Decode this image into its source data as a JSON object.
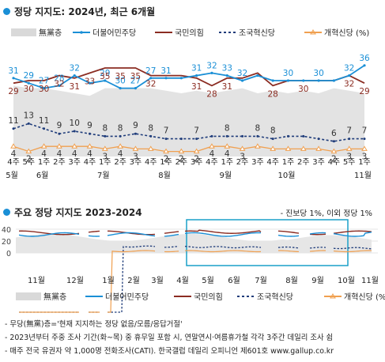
{
  "section1": {
    "title": "정당 지지도: 2024년, 최근 6개월"
  },
  "section2": {
    "title": "주요 정당 지지도 2023-2024"
  },
  "legend": [
    {
      "key": "none",
      "label": "無黨층",
      "color": "#d9d9d9"
    },
    {
      "key": "dem",
      "label": "더불어민주당",
      "color": "#1a8fd6"
    },
    {
      "key": "ppp",
      "label": "국민의힘",
      "color": "#8b2c22"
    },
    {
      "key": "rebuild",
      "label": "조국혁신당",
      "color": "#1f3c7a"
    },
    {
      "key": "reform",
      "label": "개혁신당 (%)",
      "color": "#f0a050"
    }
  ],
  "note": "- 진보당 1%, 이외 정당 1%",
  "footnotes": [
    "- 무당(無黨)층='현재 지지하는 정당 없음/모름/응답거절'",
    "- 2023년부터 주중 조사 기간(화~목) 중 휴무일 포함 시, 연말연시·여름휴가철 각각 3주간 데일리 조사 쉼",
    "- 매주 전국 유권자 약 1,000명 전화조사(CATI). 한국갤럽 데일리 오피니언 제601호 www.gallup.co.kr"
  ],
  "chart_data": [
    {
      "type": "line",
      "title": "정당 지지도: 2024년, 최근 6개월",
      "week_labels": [
        "4주",
        "5주",
        "1주",
        "2주",
        "3주",
        "4주",
        "1주",
        "2주",
        "3주",
        "4주",
        "1주",
        "2주",
        "3주",
        "4주",
        "1주",
        "2주",
        "3주",
        "4주",
        "1주",
        "2주",
        "3주",
        "4주",
        "5주",
        "1주"
      ],
      "month_labels": [
        {
          "label": "5월",
          "at": 0
        },
        {
          "label": "6월",
          "at": 2
        },
        {
          "label": "7월",
          "at": 6
        },
        {
          "label": "8월",
          "at": 10
        },
        {
          "label": "9월",
          "at": 14
        },
        {
          "label": "10월",
          "at": 18
        },
        {
          "label": "11월",
          "at": 23
        }
      ],
      "series": [
        {
          "key": "none",
          "name": "無黨층",
          "type": "area",
          "values": [
            28,
            27,
            27,
            26,
            25,
            24,
            27,
            27,
            27,
            27,
            26,
            25,
            26,
            25,
            26,
            27,
            25,
            26,
            25,
            26,
            25,
            27,
            26,
            25
          ]
        },
        {
          "key": "dem",
          "name": "더불어민주당",
          "values": [
            31,
            29,
            27,
            28,
            32,
            29,
            30,
            27,
            27,
            31,
            31,
            31,
            32,
            33,
            32,
            30,
            32,
            30,
            30,
            30,
            30,
            30,
            32,
            36
          ]
        },
        {
          "key": "ppp",
          "name": "국민의힘",
          "values": [
            29,
            30,
            30,
            32,
            31,
            33,
            35,
            35,
            35,
            32,
            32,
            32,
            31,
            28,
            31,
            31,
            33,
            28,
            30,
            30,
            30,
            30,
            32,
            29
          ]
        },
        {
          "key": "rebuild",
          "name": "조국혁신당",
          "values": [
            11,
            13,
            11,
            9,
            10,
            9,
            8,
            8,
            9,
            8,
            7,
            7,
            7,
            8,
            8,
            8,
            8,
            7,
            8,
            8,
            7,
            6,
            7,
            7
          ]
        },
        {
          "key": "reform",
          "name": "개혁신당 (%)",
          "values": [
            4,
            2,
            4,
            4,
            4,
            4,
            3,
            4,
            3,
            3,
            2,
            2,
            2,
            4,
            4,
            3,
            4,
            3,
            3,
            3,
            3,
            2,
            3,
            3
          ]
        }
      ],
      "labels": {
        "dem": [
          31,
          29,
          27,
          28,
          32,
          29,
          30,
          27,
          27,
          31,
          31,
          32,
          33,
          32,
          30,
          30,
          32,
          36
        ],
        "ppp": [
          29,
          30,
          30,
          32,
          31,
          33,
          35,
          35,
          35,
          32,
          31,
          28,
          31,
          28,
          30,
          32,
          29
        ],
        "rebuild": [
          11,
          13,
          11,
          9,
          10,
          9,
          8,
          8,
          9,
          8,
          7,
          7,
          8,
          8,
          8,
          6,
          7,
          7
        ],
        "reform": [
          4,
          2,
          4,
          4,
          4,
          4,
          3,
          4,
          3,
          2,
          2,
          2,
          4,
          4,
          3,
          2,
          3,
          3
        ]
      }
    },
    {
      "type": "line",
      "title": "주요 정당 지지도 2023-2024",
      "y_ticks": [
        0,
        20,
        40
      ],
      "ylim": [
        0,
        45
      ],
      "x_labels": [
        "11월",
        "12월",
        "1월",
        "2월",
        "3월",
        "4월",
        "5월",
        "6월",
        "7월",
        "8월",
        "9월",
        "10월",
        "11월"
      ],
      "highlight_range": [
        "5월",
        "11월"
      ],
      "series": [
        {
          "key": "dem",
          "name": "더불어민주당"
        },
        {
          "key": "ppp",
          "name": "국민의힘"
        },
        {
          "key": "rebuild",
          "name": "조국혁신당"
        },
        {
          "key": "reform",
          "name": "개혁신당 (%)"
        },
        {
          "key": "none",
          "name": "無黨층"
        }
      ]
    }
  ]
}
